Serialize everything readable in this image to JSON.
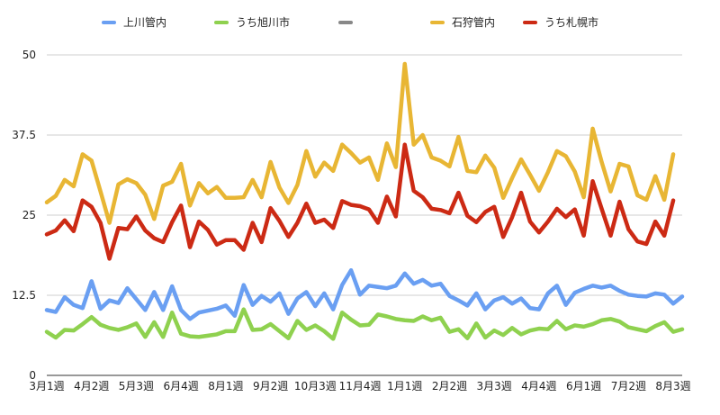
{
  "chart_data": {
    "type": "line",
    "ylim": [
      0,
      50
    ],
    "y_ticks": [
      "0",
      "12.5",
      "25",
      "37.5",
      "50"
    ],
    "y_tick_values": [
      0,
      12.5,
      25,
      37.5,
      50
    ],
    "grid": true,
    "legend_placement": "top",
    "x_tick_labels": [
      "3月1週",
      "4月2週",
      "5月3週",
      "6月4週",
      "8月1週",
      "9月2週",
      "10月3週",
      "11月4週",
      "1月1週",
      "2月2週",
      "3月3週",
      "4月4週",
      "6月1週",
      "7月2週",
      "8月3週"
    ],
    "categories_per_tick": 5,
    "series": [
      {
        "name": "上川管内",
        "color": "#6a9ff2",
        "values": [
          10.2,
          9.9,
          12.2,
          11.0,
          10.5,
          14.7,
          10.4,
          11.7,
          11.3,
          13.6,
          11.9,
          10.2,
          13.0,
          10.2,
          13.9,
          10.2,
          8.8,
          9.8,
          10.1,
          10.4,
          10.9,
          9.3,
          14.1,
          11.0,
          12.4,
          11.5,
          12.8,
          9.6,
          12.0,
          13.0,
          10.8,
          12.8,
          10.3,
          14.1,
          16.4,
          12.6,
          14.0,
          13.8,
          13.6,
          14.0,
          15.9,
          14.3,
          14.9,
          14.0,
          14.3,
          12.4,
          11.7,
          10.9,
          12.8,
          10.3,
          11.7,
          12.2,
          11.2,
          12.0,
          10.5,
          10.3,
          12.8,
          14.0,
          11.0,
          12.9,
          13.5,
          14.0,
          13.7,
          14.0,
          13.2,
          12.6,
          12.4,
          12.3,
          12.8,
          12.6,
          11.2,
          12.3
        ]
      },
      {
        "name": "うち旭川市",
        "color": "#8fd14f",
        "values": [
          6.8,
          5.9,
          7.1,
          7.0,
          8.0,
          9.1,
          7.9,
          7.4,
          7.1,
          7.5,
          8.1,
          6.0,
          8.3,
          6.0,
          9.8,
          6.5,
          6.1,
          6.0,
          6.2,
          6.4,
          6.9,
          6.9,
          10.3,
          7.1,
          7.2,
          8.0,
          6.9,
          5.8,
          8.5,
          7.1,
          7.8,
          6.9,
          5.7,
          9.8,
          8.7,
          7.8,
          7.9,
          9.5,
          9.2,
          8.8,
          8.6,
          8.5,
          9.2,
          8.6,
          9.0,
          6.8,
          7.2,
          5.8,
          8.1,
          5.9,
          7.0,
          6.3,
          7.4,
          6.4,
          7.0,
          7.3,
          7.2,
          8.5,
          7.2,
          7.8,
          7.6,
          8.0,
          8.6,
          8.8,
          8.4,
          7.5,
          7.2,
          6.9,
          7.7,
          8.3,
          6.8,
          7.2
        ]
      },
      {
        "name": "",
        "color": "#888888",
        "values": []
      },
      {
        "name": "石狩管内",
        "color": "#e8b634",
        "values": [
          27.0,
          28.0,
          30.5,
          29.5,
          34.5,
          33.5,
          28.7,
          23.8,
          29.8,
          30.6,
          30.0,
          28.2,
          24.4,
          29.6,
          30.2,
          33.0,
          26.5,
          30.0,
          28.4,
          29.4,
          27.7,
          27.7,
          27.8,
          30.5,
          27.8,
          33.3,
          29.3,
          26.9,
          29.7,
          35.0,
          31.0,
          33.2,
          31.9,
          36.0,
          34.7,
          33.2,
          34.0,
          30.5,
          36.2,
          32.5,
          48.6,
          36.0,
          37.5,
          34.0,
          33.5,
          32.6,
          37.2,
          31.9,
          31.7,
          34.3,
          32.4,
          27.7,
          30.8,
          33.7,
          31.3,
          28.8,
          31.7,
          35.0,
          34.2,
          31.8,
          27.8,
          38.5,
          33.3,
          28.7,
          33.0,
          32.6,
          28.1,
          27.4,
          31.1,
          27.4,
          34.5
        ]
      },
      {
        "name": "うち札幌市",
        "color": "#cc2a14",
        "values": [
          22.0,
          22.6,
          24.2,
          22.5,
          27.3,
          26.3,
          23.8,
          18.2,
          23.0,
          22.8,
          24.8,
          22.6,
          21.4,
          20.8,
          23.9,
          26.5,
          20.0,
          24.0,
          22.7,
          20.4,
          21.1,
          21.1,
          19.6,
          23.8,
          20.8,
          26.1,
          24.1,
          21.6,
          23.8,
          26.8,
          23.8,
          24.3,
          23.0,
          27.2,
          26.6,
          26.4,
          25.9,
          23.8,
          27.9,
          24.8,
          36.0,
          28.8,
          27.8,
          26.0,
          25.8,
          25.3,
          28.5,
          24.9,
          23.9,
          25.5,
          26.3,
          21.6,
          24.7,
          28.5,
          24.0,
          22.3,
          24.0,
          26.0,
          24.7,
          25.9,
          21.8,
          30.3,
          26.0,
          21.8,
          27.1,
          22.8,
          20.9,
          20.5,
          24.0,
          21.8,
          27.3
        ]
      }
    ]
  }
}
